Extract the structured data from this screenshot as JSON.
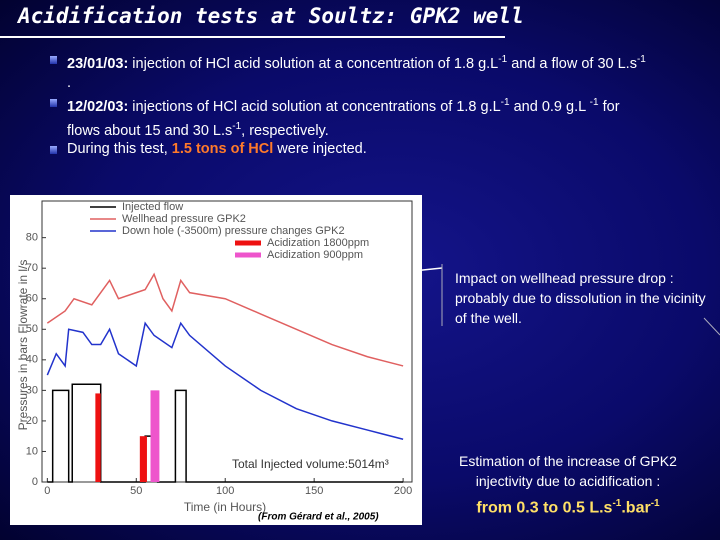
{
  "title": "Acidification tests at Soultz: GPK2 well",
  "bullets": [
    [
      "23/01/03:",
      " injection of HCl acid solution at a concentration of 1.8 g.L",
      "-1",
      " and a flow of 30 L.s",
      "-1",
      " ."
    ],
    [
      "12/02/03:",
      " injections of HCl acid solution at concentrations of 1.8 g.L",
      "-1",
      " and 0.9 g.L ",
      "-1",
      " for flows about 15 and 30 L.s",
      "-1",
      ", respectively."
    ],
    [
      "During this test, ",
      "1.5 tons of HCl",
      " were injected."
    ]
  ],
  "notes": [
    "Impact on wellhead pressure drop : probably due to dissolution in the vicinity of the well.",
    "Estimation of the increase of GPK2 injectivity due to acidification :",
    [
      "from 0.3 to 0.5 L.s",
      "-1",
      ".bar",
      "-1"
    ]
  ],
  "chart_data": {
    "type": "line",
    "xlabel": "Time (in Hours)",
    "ylabel": "Pressures in bars  Flowrate in l/s",
    "annotations": [
      "Total Injected volume:5014m³",
      "(From Gérard et al., 2005)"
    ],
    "xlim": [
      -3,
      205
    ],
    "xticks": [
      0,
      50,
      100,
      150,
      200
    ],
    "ylim": [
      0,
      92
    ],
    "yticks": [
      0,
      10,
      20,
      30,
      40,
      50,
      60,
      70,
      80
    ],
    "series": [
      {
        "name": "Injected flow",
        "color": "#000000",
        "type": "line",
        "x": [
          0,
          3,
          3,
          12,
          12,
          14,
          14,
          30,
          30,
          55,
          55,
          62,
          62,
          72,
          72,
          78,
          78,
          200
        ],
        "values": [
          0,
          0,
          30,
          30,
          0,
          0,
          32,
          32,
          0,
          0,
          15,
          15,
          0,
          0,
          30,
          30,
          0,
          0
        ]
      },
      {
        "name": "Wellhead pressure GPK2",
        "color": "#e06060",
        "type": "line",
        "x": [
          0,
          10,
          15,
          25,
          35,
          40,
          50,
          55,
          60,
          65,
          70,
          75,
          80,
          100,
          120,
          140,
          160,
          180,
          200
        ],
        "values": [
          52,
          56,
          60,
          58,
          66,
          60,
          62,
          63,
          68,
          60,
          56,
          66,
          62,
          60,
          55,
          50,
          45,
          41,
          38
        ]
      },
      {
        "name": "Down hole (-3500m) pressure changes GPK2",
        "color": "#2233cc",
        "type": "line",
        "x": [
          0,
          5,
          10,
          12,
          20,
          25,
          30,
          35,
          40,
          50,
          55,
          60,
          70,
          75,
          80,
          100,
          120,
          140,
          160,
          180,
          200
        ],
        "values": [
          35,
          42,
          38,
          50,
          49,
          45,
          45,
          50,
          42,
          38,
          52,
          48,
          44,
          52,
          48,
          38,
          30,
          24,
          20,
          17,
          14
        ]
      },
      {
        "name": "Acidization 1800ppm",
        "color": "#ee1111",
        "type": "bar",
        "x": [
          [
            27,
            30
          ],
          [
            52,
            56
          ]
        ],
        "values": [
          29,
          15
        ]
      },
      {
        "name": "Acidization 900ppm",
        "color": "#ee55cc",
        "type": "bar",
        "x": [
          [
            58,
            63
          ]
        ],
        "values": [
          30
        ]
      }
    ]
  }
}
